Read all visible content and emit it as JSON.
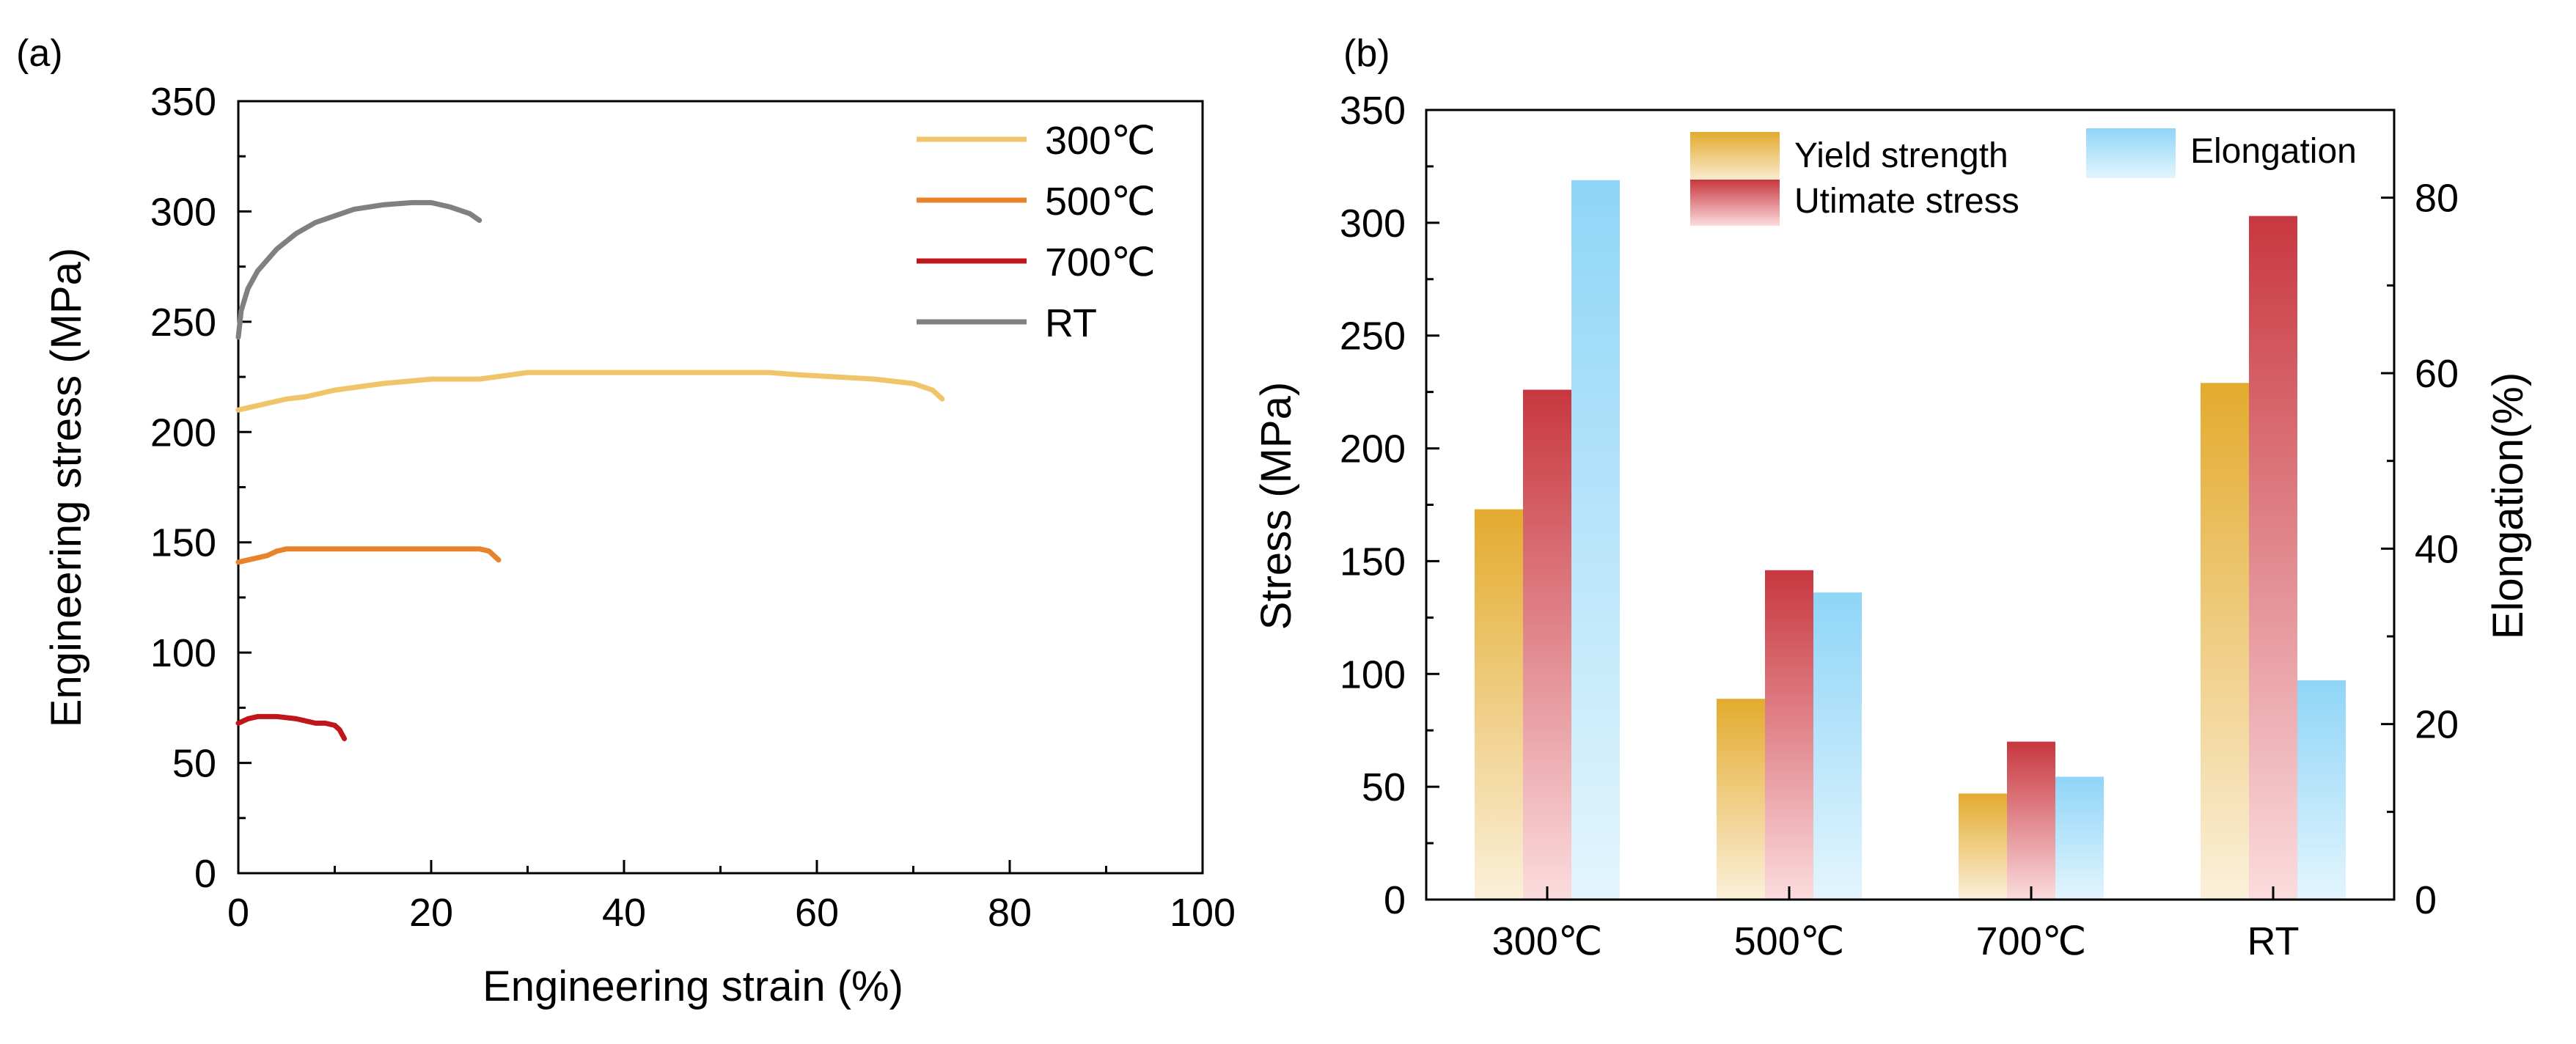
{
  "chart_data": [
    {
      "panel_label": "(a)",
      "type": "line",
      "title": "",
      "xlabel": "Engineering strain (%)",
      "ylabel": "Engineering stress (MPa)",
      "xlim": [
        0,
        100
      ],
      "ylim": [
        0,
        350
      ],
      "x_ticks": [
        0,
        20,
        40,
        60,
        80,
        100
      ],
      "y_ticks": [
        0,
        50,
        100,
        150,
        200,
        250,
        300,
        350
      ],
      "grid": false,
      "legend_position": "top-right",
      "series": [
        {
          "name": "300℃",
          "color": "#F0C56A",
          "x": [
            0,
            1,
            2,
            3,
            5,
            7,
            10,
            15,
            20,
            25,
            30,
            35,
            40,
            45,
            50,
            55,
            58,
            62,
            66,
            70,
            72,
            73
          ],
          "y": [
            210,
            211,
            212,
            213,
            215,
            216,
            219,
            222,
            224,
            224,
            227,
            227,
            227,
            227,
            227,
            227,
            226,
            225,
            224,
            222,
            219,
            215
          ]
        },
        {
          "name": "500℃",
          "color": "#E8822B",
          "x": [
            0,
            1,
            2,
            3,
            4,
            5,
            10,
            15,
            20,
            25,
            26,
            27
          ],
          "y": [
            141,
            142,
            143,
            144,
            146,
            147,
            147,
            147,
            147,
            147,
            146,
            142
          ]
        },
        {
          "name": "700℃",
          "color": "#C0151B",
          "x": [
            0,
            0.5,
            1,
            2,
            4,
            6,
            8,
            9,
            10,
            10.5,
            11
          ],
          "y": [
            68,
            69,
            70,
            71,
            71,
            70,
            68,
            68,
            67,
            65,
            61
          ]
        },
        {
          "name": "RT",
          "color": "#808080",
          "x": [
            0,
            0.3,
            1,
            2,
            4,
            6,
            8,
            10,
            12,
            15,
            18,
            20,
            22,
            24,
            25
          ],
          "y": [
            243,
            255,
            265,
            273,
            283,
            290,
            295,
            298,
            301,
            303,
            304,
            304,
            302,
            299,
            296
          ]
        }
      ]
    },
    {
      "panel_label": "(b)",
      "type": "bar",
      "title": "",
      "xlabel": "",
      "ylabel": "Stress (MPa)",
      "y2label": "Elongation(%)",
      "ylim": [
        0,
        350
      ],
      "y2lim": [
        0,
        90
      ],
      "y_ticks": [
        0,
        50,
        100,
        150,
        200,
        250,
        300,
        350
      ],
      "y2_ticks": [
        0,
        20,
        40,
        60,
        80
      ],
      "grid": false,
      "legend_position": "top",
      "categories": [
        "300℃",
        "500℃",
        "700℃",
        "RT"
      ],
      "series": [
        {
          "name": "Yield strength",
          "axis": "left",
          "color_top": "#E3AB2E",
          "color_bottom": "#FBF0DA",
          "values": [
            173,
            89,
            47,
            229
          ]
        },
        {
          "name": "Utimate stress",
          "axis": "left",
          "color_top": "#C8373F",
          "color_bottom": "#FBDCDE",
          "values": [
            226,
            146,
            70,
            303
          ]
        },
        {
          "name": "Elongation",
          "axis": "right",
          "color_top": "#8FD5F7",
          "color_bottom": "#E3F5FD",
          "values": [
            82,
            35,
            14,
            25
          ]
        }
      ]
    }
  ]
}
